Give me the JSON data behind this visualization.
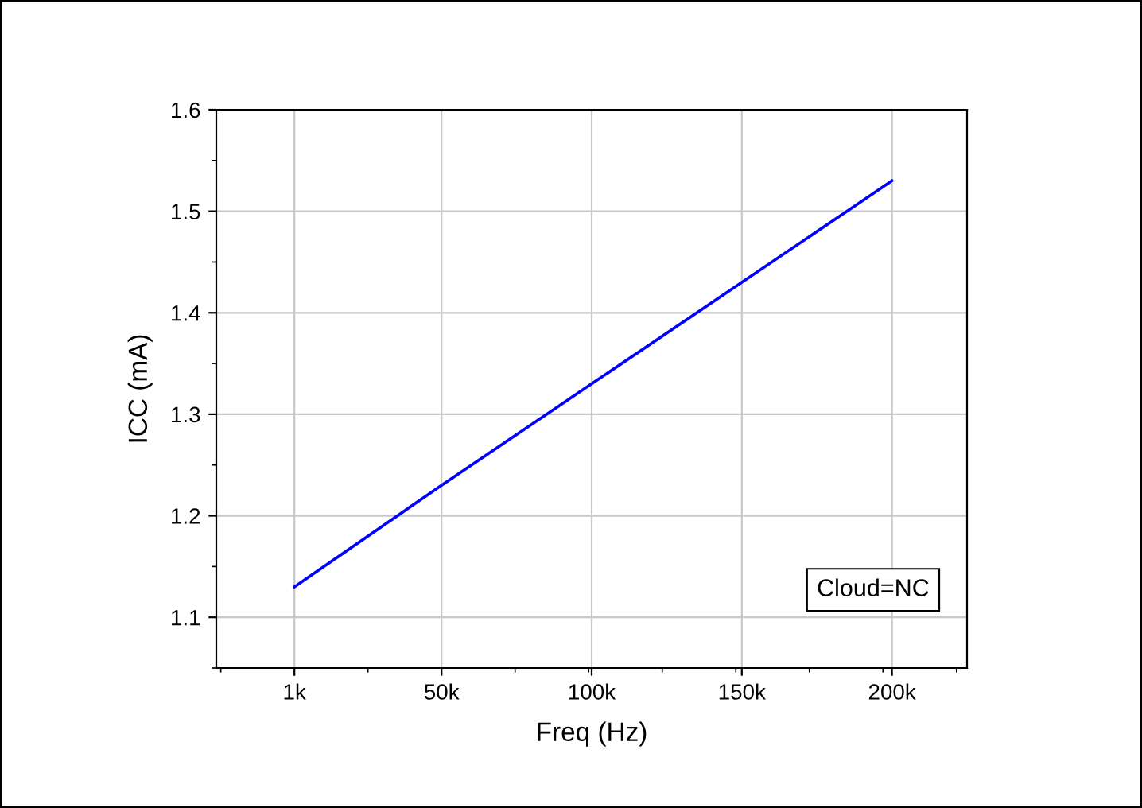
{
  "chart_data": {
    "type": "line",
    "xlabel": "Freq (Hz)",
    "ylabel": "ICC (mA)",
    "x": [
      1000,
      50000,
      100000,
      150000,
      200000
    ],
    "series": [
      {
        "color": "#0000ff",
        "values": [
          1.13,
          1.23,
          1.33,
          1.43,
          1.53
        ]
      }
    ],
    "xlim": [
      -25000,
      225000
    ],
    "xticks": [
      {
        "value": 1000,
        "label": "1k"
      },
      {
        "value": 50000,
        "label": "50k"
      },
      {
        "value": 100000,
        "label": "100k"
      },
      {
        "value": 150000,
        "label": "150k"
      },
      {
        "value": 200000,
        "label": "200k"
      }
    ],
    "ylim": [
      1.05,
      1.6
    ],
    "yticks": [
      1.1,
      1.2,
      1.3,
      1.4,
      1.5,
      1.6
    ],
    "grid": true,
    "marker": "none",
    "line_style": "solid",
    "annotations": [
      "Cloud=NC"
    ]
  }
}
